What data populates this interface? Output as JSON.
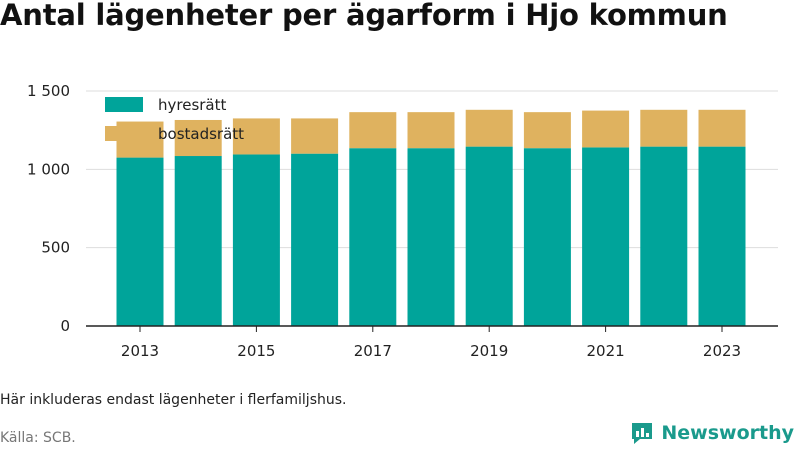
{
  "title": "Antal lägenheter per ägarform i Hjo kommun",
  "note": "Här inkluderas endast lägenheter i flerfamiljshus.",
  "source": "Källa: SCB.",
  "brand": {
    "name": "Newsworthy",
    "icon": "newsworthy-logo-icon"
  },
  "colors": {
    "hyresratt": "#00a49a",
    "bostadsratt": "#dfb25f",
    "grid": "#dddddd",
    "axis": "#222222"
  },
  "chart_data": {
    "type": "bar",
    "stacked": true,
    "categories": [
      "2013",
      "2014",
      "2015",
      "2016",
      "2017",
      "2018",
      "2019",
      "2020",
      "2021",
      "2022",
      "2023"
    ],
    "x_tick_labels": [
      "2013",
      "",
      "2015",
      "",
      "2017",
      "",
      "2019",
      "",
      "2021",
      "",
      "2023"
    ],
    "series": [
      {
        "name": "hyresrätt",
        "values": [
          1075,
          1085,
          1095,
          1100,
          1135,
          1135,
          1145,
          1135,
          1140,
          1145,
          1145
        ]
      },
      {
        "name": "bostadsrätt",
        "values": [
          230,
          230,
          230,
          225,
          230,
          230,
          235,
          230,
          235,
          235,
          235
        ]
      }
    ],
    "ylim": [
      0,
      1500
    ],
    "y_ticks": [
      0,
      500,
      1000,
      1500
    ],
    "y_tick_labels": [
      "0",
      "500",
      "1 000",
      "1 500"
    ],
    "grid": true,
    "legend_position": "top-left"
  }
}
